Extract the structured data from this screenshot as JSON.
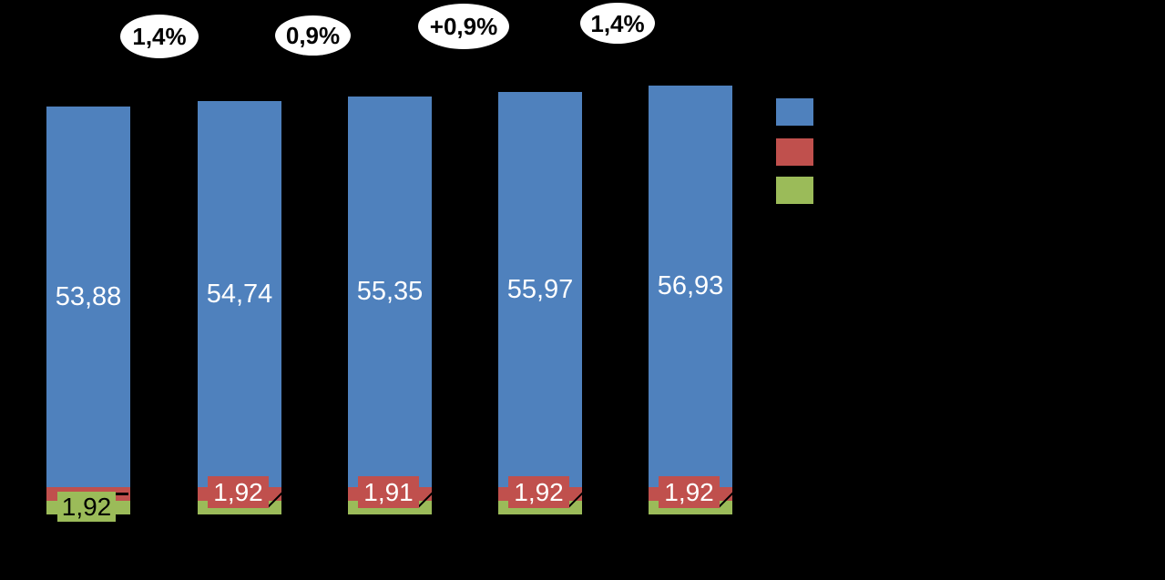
{
  "chart_data": {
    "type": "bar",
    "stacked": true,
    "orientation": "vertical",
    "background_color": "#000000",
    "categories": [
      "",
      "",
      "",
      "",
      ""
    ],
    "category_labels_visible": false,
    "axes_visible": false,
    "grid": false,
    "series": [
      {
        "name": "blue-series",
        "color": "#4F81BD",
        "values": [
          53.88,
          54.74,
          55.35,
          55.97,
          56.93
        ]
      },
      {
        "name": "red-series",
        "color": "#C0504D",
        "values": [
          1.92,
          1.92,
          1.91,
          1.92,
          1.92
        ]
      },
      {
        "name": "green-series",
        "color": "#9BBB59",
        "values": [
          1.92,
          1.92,
          1.92,
          1.92,
          1.92
        ]
      }
    ],
    "value_labels": {
      "blue": [
        "53,88",
        "54,74",
        "55,35",
        "55,97",
        "56,93"
      ],
      "bottom": [
        {
          "text": "1,92",
          "box_color": "#9BBB59",
          "text_color": "#000000",
          "leader": "dash"
        },
        {
          "text": "1,92",
          "box_color": "#C0504D",
          "text_color": "#FFFFFF",
          "leader": "diagonal"
        },
        {
          "text": "1,91",
          "box_color": "#C0504D",
          "text_color": "#FFFFFF",
          "leader": "diagonal"
        },
        {
          "text": "1,92",
          "box_color": "#C0504D",
          "text_color": "#FFFFFF",
          "leader": "diagonal"
        },
        {
          "text": "1,92",
          "box_color": "#C0504D",
          "text_color": "#FFFFFF",
          "leader": "diagonal"
        }
      ]
    },
    "growth_badges": [
      {
        "text": "1,4%"
      },
      {
        "text": "0,9%"
      },
      {
        "text": "+0,9%"
      },
      {
        "text": "1,4%"
      }
    ],
    "legend": {
      "position": "right",
      "labels_visible": false,
      "entries": [
        {
          "swatch_color": "#4F81BD"
        },
        {
          "swatch_color": "#C0504D"
        },
        {
          "swatch_color": "#9BBB59"
        }
      ]
    }
  }
}
